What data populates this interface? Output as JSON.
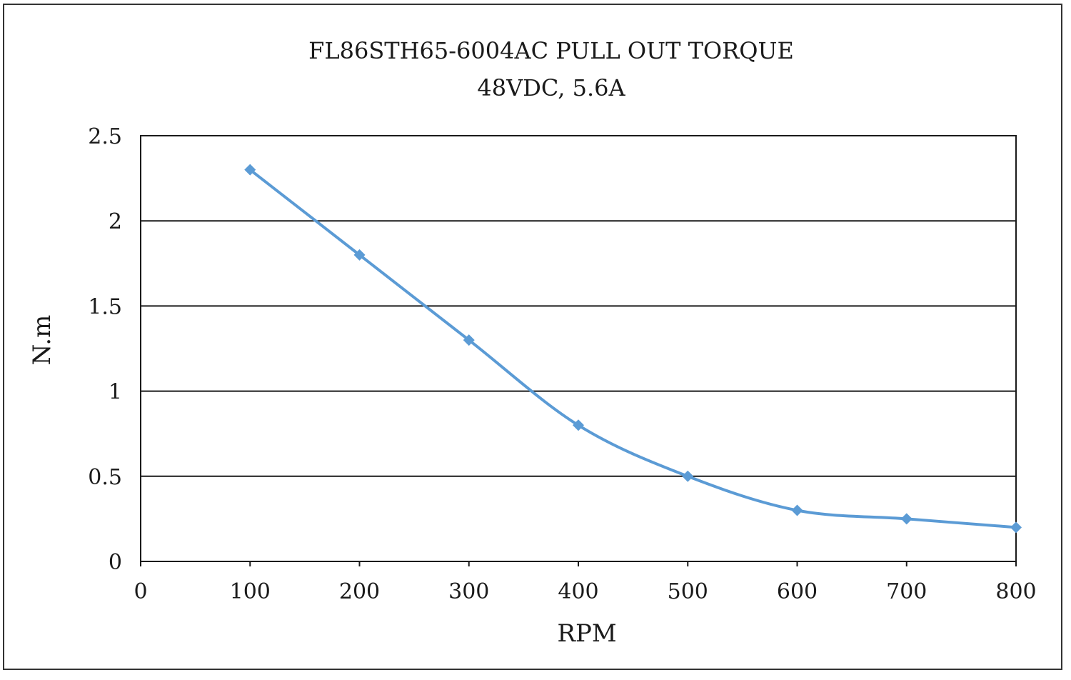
{
  "chart_data": {
    "type": "line",
    "title": "FL86STH65-6004AC PULL OUT TORQUE",
    "subtitle": "48VDC, 5.6A",
    "xlabel": "RPM",
    "ylabel": "N.m",
    "xlim": [
      0,
      800
    ],
    "ylim": [
      0,
      2.5
    ],
    "x_ticks": [
      0,
      100,
      200,
      300,
      400,
      500,
      600,
      700,
      800
    ],
    "y_ticks": [
      0,
      0.5,
      1,
      1.5,
      2,
      2.5
    ],
    "x_tick_labels": [
      "0",
      "100",
      "200",
      "300",
      "400",
      "500",
      "600",
      "700",
      "800"
    ],
    "y_tick_labels": [
      "0",
      "0.5",
      "1",
      "1.5",
      "2",
      "2.5"
    ],
    "grid": "horizontal",
    "legend": "none",
    "series": [
      {
        "color": "#5b9bd5",
        "marker": "diamond",
        "smooth": true,
        "x": [
          100,
          200,
          300,
          400,
          500,
          600,
          700,
          800
        ],
        "y": [
          2.3,
          1.8,
          1.3,
          0.8,
          0.5,
          0.3,
          0.25,
          0.2
        ]
      }
    ]
  }
}
